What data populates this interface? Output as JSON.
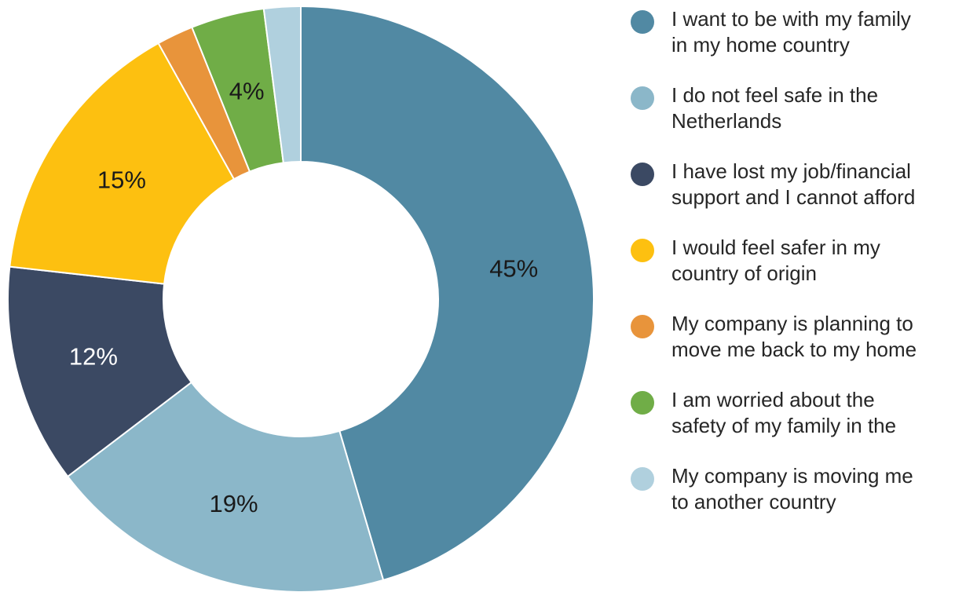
{
  "chart_data": {
    "type": "pie",
    "variant": "donut",
    "legend_position": "right",
    "colors": [
      "#5189a3",
      "#8bb7c9",
      "#3b4963",
      "#fdc010",
      "#e8943b",
      "#70ad47",
      "#b0d0de"
    ],
    "label_colors": [
      "#1a1a1a",
      "#1a1a1a",
      "#ffffff",
      "#1a1a1a",
      "#1a1a1a",
      "#1a1a1a",
      "#1a1a1a"
    ],
    "categories": [
      "I want to be with my family\nin my home country",
      "I do not feel safe in the\nNetherlands",
      "I have lost my job/financial\nsupport and I cannot afford",
      "I would feel safer in my\ncountry of origin",
      "My company is planning to\nmove me back to my home",
      "I am worried about the\nsafety of my family in the",
      "My company is moving me\nto another country"
    ],
    "values": [
      45,
      19,
      12,
      15,
      2,
      4,
      2
    ],
    "labels": [
      "45%",
      "19%",
      "12%",
      "15%",
      "",
      "4%",
      ""
    ]
  }
}
